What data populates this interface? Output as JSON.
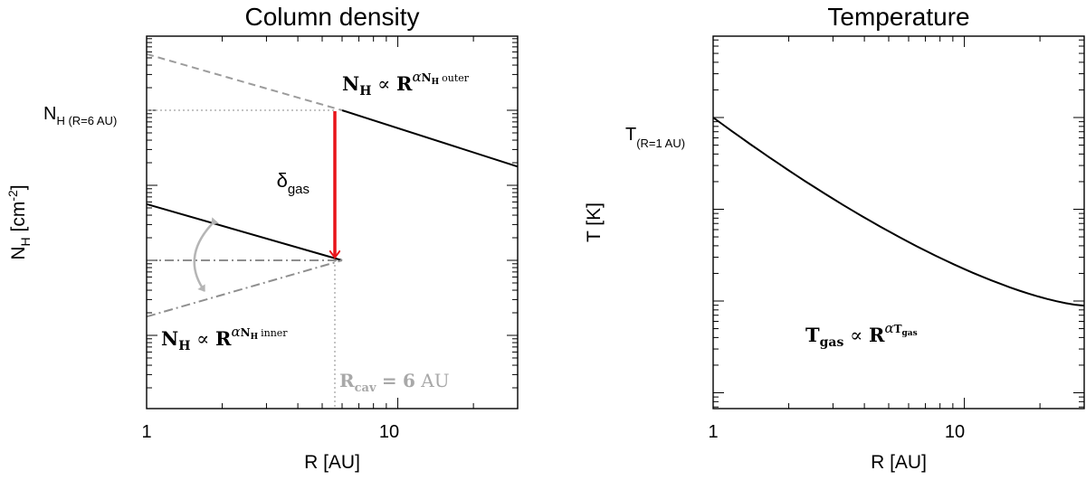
{
  "chart_data": [
    {
      "type": "line",
      "title": "Column density",
      "xlabel": "R [AU]",
      "ylabel": {
        "main": "N",
        "sub": "H",
        "unit": " [cm",
        "exp": "-2",
        "close": "]"
      },
      "x_scale": "log",
      "xlim": [
        1,
        30
      ],
      "y_scale": "log",
      "xtick_labels": [
        "1",
        "10"
      ],
      "ytick_label": {
        "main": "N",
        "sub": "H (R=6 AU)"
      },
      "series": [
        {
          "style": "solid-black",
          "x": [
            6,
            30
          ],
          "y_decades": [
            0,
            -0.75
          ]
        },
        {
          "style": "solid-black",
          "x": [
            1,
            6
          ],
          "y_decades": [
            -1.25,
            -2.0
          ]
        },
        {
          "style": "dashed-grey",
          "x": [
            1,
            6
          ],
          "y_decades": [
            0.75,
            0
          ]
        },
        {
          "style": "dashdot-grey",
          "x": [
            1,
            6
          ],
          "y_decades": [
            -2.0,
            -2.0
          ]
        },
        {
          "style": "dashdot-grey",
          "x": [
            1,
            6
          ],
          "y_decades": [
            -2.75,
            -2.0
          ]
        }
      ],
      "gap_arrow": {
        "x": 6,
        "from_decade": 0,
        "to_decade": -2.0,
        "color": "#e8141a"
      },
      "annotations": {
        "delta": {
          "main": "δ",
          "sub": "gas"
        },
        "outer_law": {
          "lhs_main": "N",
          "lhs_sub": "H",
          "op": "∝",
          "rhs": "R",
          "alpha": "α",
          "alpha_main": "N",
          "alpha_sub": "H",
          "suffix": "outer"
        },
        "inner_law": {
          "lhs_main": "N",
          "lhs_sub": "H",
          "op": "∝",
          "rhs": "R",
          "alpha": "α",
          "alpha_main": "N",
          "alpha_sub": "H",
          "suffix": "inner"
        },
        "cavity": {
          "main": "R",
          "sub": "cav",
          "eq": "=",
          "val": "6",
          "unit": "AU"
        }
      }
    },
    {
      "type": "line",
      "title": "Temperature",
      "xlabel": "R [AU]",
      "ylabel": "T [K]",
      "x_scale": "log",
      "xlim": [
        1,
        30
      ],
      "y_scale": "log",
      "xtick_labels": [
        "1",
        "10"
      ],
      "ytick_label": {
        "main": "T",
        "sub": "(R=1 AU)"
      },
      "series": [
        {
          "style": "solid-black",
          "x": [
            1,
            30
          ],
          "y_decades": [
            0,
            -2.05
          ]
        }
      ],
      "annotations": {
        "law": {
          "lhs_main": "T",
          "lhs_sub": "gas",
          "op": "∝",
          "rhs": "R",
          "alpha": "α",
          "alpha_main": "T",
          "alpha_sub": "gas"
        }
      }
    }
  ]
}
